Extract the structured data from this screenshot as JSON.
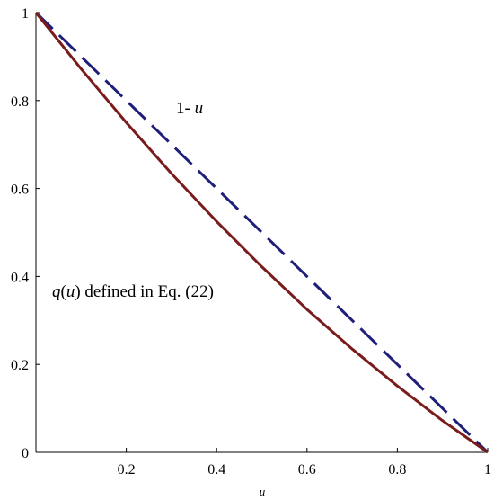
{
  "chart_data": {
    "type": "line",
    "xlabel": "u",
    "ylabel": "",
    "xlim": [
      0,
      1
    ],
    "ylim": [
      0,
      1
    ],
    "x_ticks": [
      "0.2",
      "0.4",
      "0.6",
      "0.8",
      "1"
    ],
    "y_ticks": [
      "0",
      "0.2",
      "0.4",
      "0.6",
      "0.8",
      "1"
    ],
    "grid": false,
    "series": [
      {
        "name": "1- u",
        "color": "#1f1f7a",
        "style": "dashed",
        "x": [
          0,
          1
        ],
        "y": [
          1,
          0
        ]
      },
      {
        "name": "q(u) defined in Eq. (22)",
        "color": "#7a1c1c",
        "style": "solid",
        "x": [
          0,
          0.1,
          0.2,
          0.3,
          0.4,
          0.5,
          0.6,
          0.7,
          0.8,
          0.9,
          1
        ],
        "y": [
          1,
          0.872,
          0.75,
          0.634,
          0.525,
          0.422,
          0.325,
          0.235,
          0.151,
          0.072,
          0
        ]
      }
    ],
    "annotations": [
      {
        "parts": [
          "1- ",
          "u"
        ]
      },
      {
        "parts": [
          "q",
          "(",
          "u",
          ") defined in Eq. (22)"
        ]
      }
    ]
  }
}
